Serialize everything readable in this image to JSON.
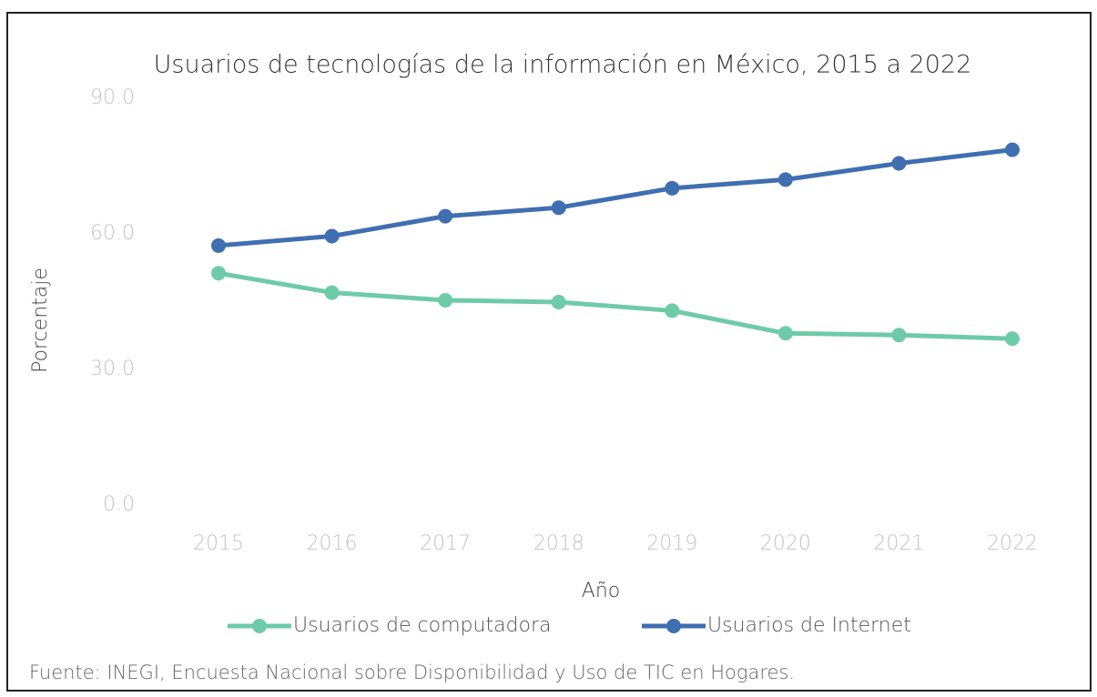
{
  "chart_data": {
    "type": "line",
    "title": "Usuarios de tecnologías de la información en México, 2015 a 2022",
    "x_label": "Año",
    "y_label": "Porcentaje",
    "categories": [
      "2015",
      "2016",
      "2017",
      "2018",
      "2019",
      "2020",
      "2021",
      "2022"
    ],
    "series": [
      {
        "name": "Usuarios de computadora",
        "color": "#6ecba7",
        "values": [
          51.3,
          47.0,
          45.3,
          44.9,
          43.0,
          38.0,
          37.6,
          36.8
        ]
      },
      {
        "name": "Usuarios de Internet",
        "color": "#3f6fb1",
        "values": [
          57.4,
          59.5,
          63.9,
          65.8,
          70.1,
          72.0,
          75.6,
          78.6
        ]
      }
    ],
    "ylim": [
      0,
      90
    ],
    "yticks": [
      {
        "value": 0,
        "label": "0.0"
      },
      {
        "value": 30,
        "label": "30.0"
      },
      {
        "value": 60,
        "label": "60.0"
      },
      {
        "value": 90,
        "label": "90.0"
      }
    ],
    "grid": false,
    "source": "Fuente: INEGI, Encuesta Nacional sobre Disponibilidad y Uso de TIC en Hogares."
  }
}
